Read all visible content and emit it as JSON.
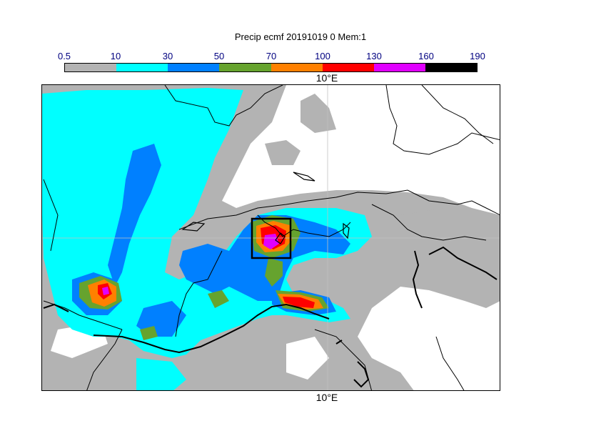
{
  "title": "Precip ecmf 20191019 0 Mem:1",
  "legend": {
    "ticks": [
      "0.5",
      "10",
      "30",
      "50",
      "70",
      "100",
      "130",
      "160",
      "190"
    ],
    "colors": [
      "#b3b3b3",
      "#00ffff",
      "#0080ff",
      "#66a32e",
      "#ff8000",
      "#ff0000",
      "#e000ff",
      "#000000"
    ]
  },
  "map": {
    "lon_label_top": "10°E",
    "lon_label_bottom": "10°E",
    "highlight_box": "region of interest"
  }
}
